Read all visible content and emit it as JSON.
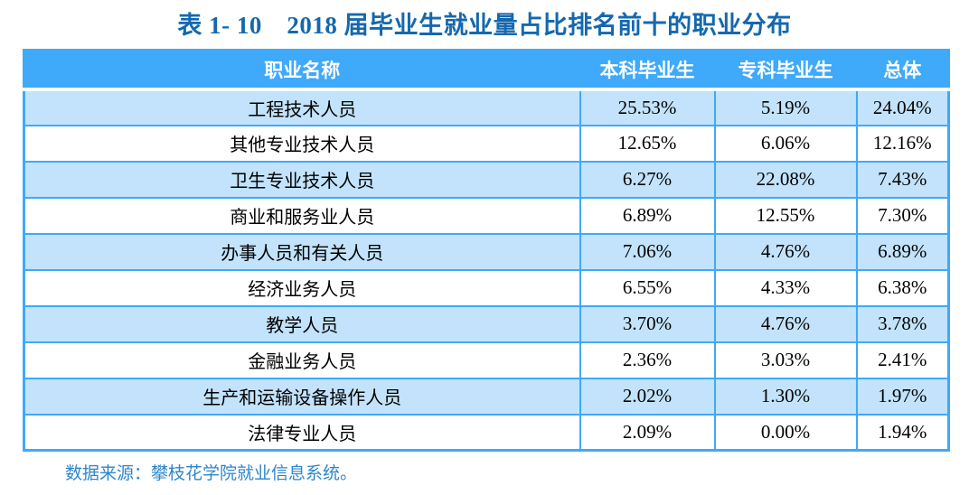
{
  "title": "表 1- 10　2018 届毕业生就业量占比排名前十的职业分布",
  "table": {
    "headers": [
      "职业名称",
      "本科毕业生",
      "专科毕业生",
      "总体"
    ],
    "rows": [
      [
        "工程技术人员",
        "25.53%",
        "5.19%",
        "24.04%"
      ],
      [
        "其他专业技术人员",
        "12.65%",
        "6.06%",
        "12.16%"
      ],
      [
        "卫生专业技术人员",
        "6.27%",
        "22.08%",
        "7.43%"
      ],
      [
        "商业和服务业人员",
        "6.89%",
        "12.55%",
        "7.30%"
      ],
      [
        "办事人员和有关人员",
        "7.06%",
        "4.76%",
        "6.89%"
      ],
      [
        "经济业务人员",
        "6.55%",
        "4.33%",
        "6.38%"
      ],
      [
        "教学人员",
        "3.70%",
        "4.76%",
        "3.78%"
      ],
      [
        "金融业务人员",
        "2.36%",
        "3.03%",
        "2.41%"
      ],
      [
        "生产和运输设备操作人员",
        "2.02%",
        "1.30%",
        "1.97%"
      ],
      [
        "法律专业人员",
        "2.09%",
        "0.00%",
        "1.94%"
      ]
    ]
  },
  "footer": {
    "source": "数据来源：攀枝花学院就业信息系统。"
  },
  "colors": {
    "header_bg": "#3FA9FA",
    "border": "#3FA9FA",
    "row_alt_bg": "#C2E3FB",
    "title_color": "#1568AE",
    "footer_color": "#2E86C9"
  }
}
